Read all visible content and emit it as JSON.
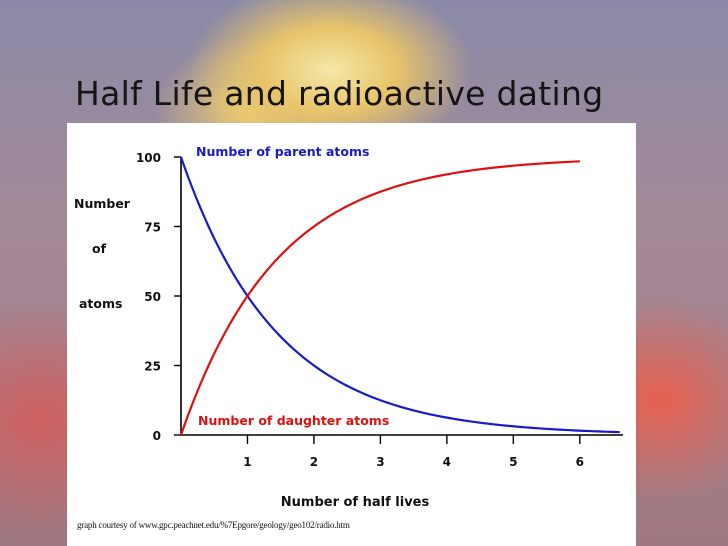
{
  "slide": {
    "title": "Half Life and radioactive dating"
  },
  "chart_data": {
    "type": "line",
    "ylabel_lines": [
      "Number",
      "of",
      "atoms"
    ],
    "xlabel": "Number of half lives",
    "ylim": [
      0,
      100
    ],
    "xlim": [
      0,
      6.65
    ],
    "y_ticks": [
      "0",
      "25",
      "50",
      "75",
      "100"
    ],
    "x_ticks": [
      "1",
      "2",
      "3",
      "4",
      "5",
      "6"
    ],
    "x_tick_values": [
      1,
      2,
      3,
      4,
      5,
      6
    ],
    "y_tick_values": [
      0,
      25,
      50,
      75,
      100
    ],
    "grid": false,
    "series": [
      {
        "name": "Number of parent atoms",
        "color": "#1a1acc",
        "x": [
          0,
          0.5,
          1,
          1.5,
          2,
          2.5,
          3,
          3.5,
          4,
          4.5,
          5,
          5.5,
          6,
          6.6
        ],
        "values": [
          100,
          70.7,
          50,
          35.4,
          25,
          17.7,
          12.5,
          8.8,
          6.25,
          4.4,
          3.1,
          2.2,
          1.6,
          1.0
        ]
      },
      {
        "name": "Number of daughter atoms",
        "color": "#dd1111",
        "x": [
          0,
          0.5,
          1,
          1.5,
          2,
          2.5,
          3,
          3.5,
          4,
          4.5,
          5,
          5.5,
          6
        ],
        "values": [
          0,
          29.3,
          50,
          64.6,
          75,
          82.3,
          87.5,
          91.2,
          93.75,
          95.6,
          96.9,
          97.8,
          98.4
        ]
      }
    ]
  },
  "caption": "graph courtesy of www.gpc.peachnet.edu/%7Epgore/geology/geo102/radio.htm"
}
